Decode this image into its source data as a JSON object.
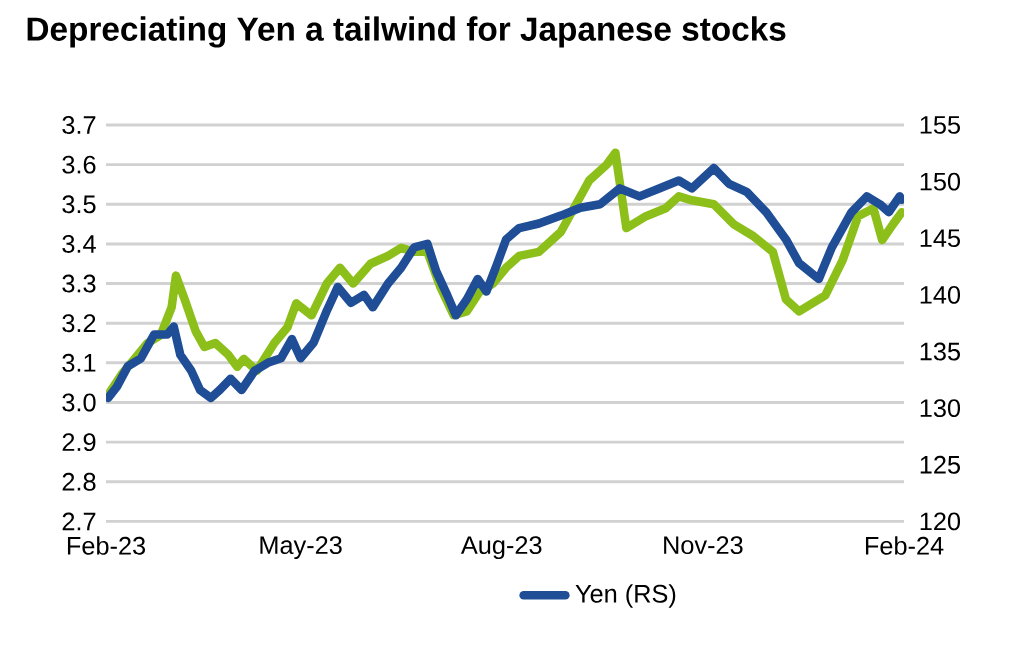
{
  "chart_data": {
    "type": "line",
    "title": "Depreciating Yen a tailwind for Japanese stocks",
    "xlim": [
      "2023-02-01",
      "2024-02-01"
    ],
    "xticks": [
      {
        "value": "2023-02-01",
        "label": "Feb-23"
      },
      {
        "value": "2023-05-01",
        "label": "May-23"
      },
      {
        "value": "2023-08-01",
        "label": "Aug-23"
      },
      {
        "value": "2023-11-01",
        "label": "Nov-23"
      },
      {
        "value": "2024-02-01",
        "label": "Feb-24"
      }
    ],
    "ylim": [
      2.7,
      3.7
    ],
    "yticks": [
      {
        "value": 2.7,
        "label": "2.7"
      },
      {
        "value": 2.8,
        "label": "2.8"
      },
      {
        "value": 2.9,
        "label": "2.9"
      },
      {
        "value": 3.0,
        "label": "3.0"
      },
      {
        "value": 3.1,
        "label": "3.1"
      },
      {
        "value": 3.2,
        "label": "3.2"
      },
      {
        "value": 3.3,
        "label": "3.3"
      },
      {
        "value": 3.4,
        "label": "3.4"
      },
      {
        "value": 3.5,
        "label": "3.5"
      },
      {
        "value": 3.6,
        "label": "3.6"
      },
      {
        "value": 3.7,
        "label": "3.7"
      }
    ],
    "y2lim": [
      120,
      155
    ],
    "y2ticks": [
      120,
      125,
      130,
      135,
      140,
      145,
      150,
      155
    ],
    "grid": "y",
    "legend": "bottom",
    "marker": "none",
    "line_style": "solid",
    "series": [
      {
        "color": "#8dbf1a",
        "x": [
          "2023-02-02",
          "2023-02-08",
          "2023-02-14",
          "2023-02-20",
          "2023-02-26",
          "2023-03-03",
          "2023-03-05",
          "2023-03-09",
          "2023-03-14",
          "2023-03-18",
          "2023-03-23",
          "2023-03-29",
          "2023-04-02",
          "2023-04-05",
          "2023-04-11",
          "2023-04-19",
          "2023-04-25",
          "2023-04-29",
          "2023-05-06",
          "2023-05-13",
          "2023-05-19",
          "2023-05-25",
          "2023-06-02",
          "2023-06-10",
          "2023-06-16",
          "2023-06-22",
          "2023-06-28",
          "2023-07-04",
          "2023-07-10",
          "2023-07-16",
          "2023-07-22",
          "2023-07-28",
          "2023-08-03",
          "2023-08-09",
          "2023-08-18",
          "2023-08-28",
          "2023-09-03",
          "2023-09-10",
          "2023-09-18",
          "2023-09-22",
          "2023-09-27",
          "2023-10-06",
          "2023-10-15",
          "2023-10-21",
          "2023-10-27",
          "2023-11-06",
          "2023-11-15",
          "2023-11-24",
          "2023-12-03",
          "2023-12-09",
          "2023-12-15",
          "2023-12-21",
          "2023-12-27",
          "2024-01-04",
          "2024-01-11",
          "2024-01-18",
          "2024-01-22",
          "2024-01-27",
          "2024-01-31"
        ],
        "values": [
          3.02,
          3.07,
          3.11,
          3.15,
          3.17,
          3.24,
          3.32,
          3.26,
          3.18,
          3.14,
          3.15,
          3.12,
          3.09,
          3.11,
          3.08,
          3.15,
          3.19,
          3.25,
          3.22,
          3.3,
          3.34,
          3.3,
          3.35,
          3.37,
          3.39,
          3.38,
          3.38,
          3.29,
          3.22,
          3.23,
          3.28,
          3.3,
          3.34,
          3.37,
          3.38,
          3.43,
          3.49,
          3.56,
          3.6,
          3.63,
          3.44,
          3.47,
          3.49,
          3.52,
          3.51,
          3.5,
          3.45,
          3.42,
          3.38,
          3.26,
          3.23,
          3.25,
          3.27,
          3.36,
          3.47,
          3.49,
          3.41,
          3.45,
          3.48
        ]
      },
      {
        "name": "Yen (RS)",
        "color": "#1f4e96",
        "axis": "y2",
        "x": [
          "2023-02-02",
          "2023-02-06",
          "2023-02-11",
          "2023-02-17",
          "2023-02-23",
          "2023-03-01",
          "2023-03-04",
          "2023-03-07",
          "2023-03-12",
          "2023-03-16",
          "2023-03-21",
          "2023-03-25",
          "2023-03-30",
          "2023-04-04",
          "2023-04-10",
          "2023-04-16",
          "2023-04-22",
          "2023-04-27",
          "2023-05-01",
          "2023-05-07",
          "2023-05-13",
          "2023-05-18",
          "2023-05-24",
          "2023-05-30",
          "2023-06-03",
          "2023-06-10",
          "2023-06-16",
          "2023-06-22",
          "2023-06-28",
          "2023-07-02",
          "2023-07-07",
          "2023-07-11",
          "2023-07-16",
          "2023-07-21",
          "2023-07-25",
          "2023-07-30",
          "2023-08-03",
          "2023-08-09",
          "2023-08-18",
          "2023-08-28",
          "2023-09-06",
          "2023-09-15",
          "2023-09-24",
          "2023-10-03",
          "2023-10-12",
          "2023-10-21",
          "2023-10-27",
          "2023-11-06",
          "2023-11-13",
          "2023-11-21",
          "2023-11-30",
          "2023-12-09",
          "2023-12-15",
          "2023-12-24",
          "2023-12-30",
          "2024-01-08",
          "2024-01-15",
          "2024-01-21",
          "2024-01-25",
          "2024-01-30",
          "2024-01-31"
        ],
        "values": [
          130.9,
          131.9,
          133.7,
          134.4,
          136.5,
          136.5,
          137.2,
          134.7,
          133.3,
          131.6,
          130.9,
          131.6,
          132.6,
          131.6,
          133.3,
          134.0,
          134.4,
          136.1,
          134.4,
          135.8,
          138.6,
          140.7,
          139.3,
          140.0,
          138.9,
          141.0,
          142.4,
          144.2,
          144.5,
          142.1,
          140.0,
          138.2,
          139.6,
          141.4,
          140.3,
          142.8,
          144.9,
          145.9,
          146.3,
          147.0,
          147.7,
          148.0,
          149.4,
          148.7,
          149.4,
          150.1,
          149.4,
          151.2,
          149.8,
          149.1,
          147.3,
          144.9,
          142.8,
          141.4,
          144.2,
          147.3,
          148.7,
          148.0,
          147.3,
          148.7,
          148.4
        ]
      }
    ]
  }
}
